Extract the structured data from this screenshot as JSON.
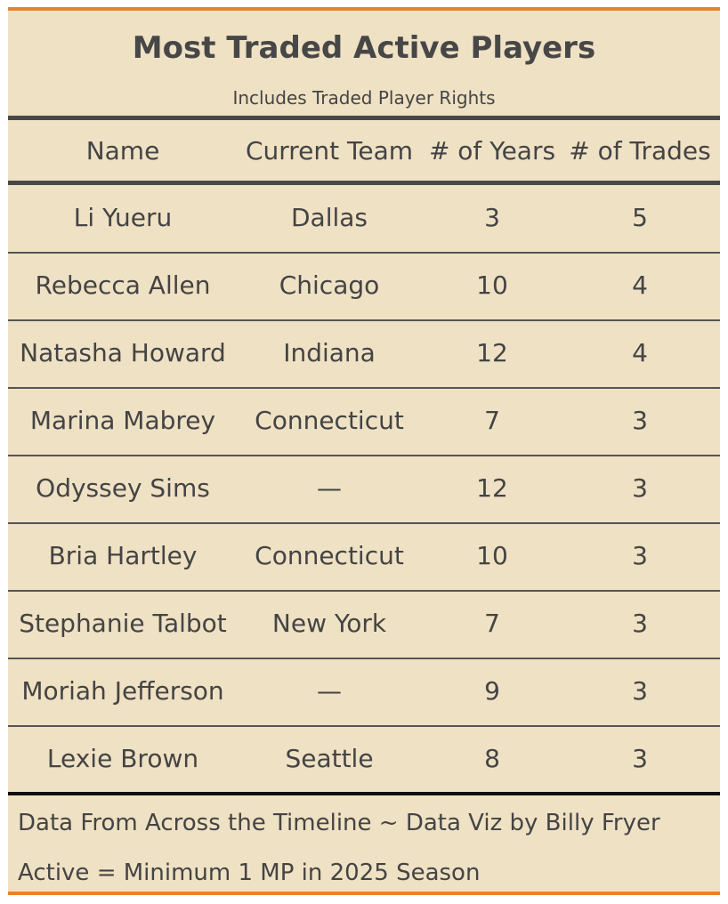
{
  "table": {
    "title": "Most Traded Active Players",
    "subtitle": "Includes Traded Player Rights",
    "columns": [
      "Name",
      "Current Team",
      "# of Years",
      "# of Trades"
    ],
    "rows": [
      {
        "name": "Li Yueru",
        "team": "Dallas",
        "years": "3",
        "trades": "5"
      },
      {
        "name": "Rebecca Allen",
        "team": "Chicago",
        "years": "10",
        "trades": "4"
      },
      {
        "name": "Natasha Howard",
        "team": "Indiana",
        "years": "12",
        "trades": "4"
      },
      {
        "name": "Marina Mabrey",
        "team": "Connecticut",
        "years": "7",
        "trades": "3"
      },
      {
        "name": "Odyssey Sims",
        "team": "—",
        "years": "12",
        "trades": "3"
      },
      {
        "name": "Bria Hartley",
        "team": "Connecticut",
        "years": "10",
        "trades": "3"
      },
      {
        "name": "Stephanie Talbot",
        "team": "New York",
        "years": "7",
        "trades": "3"
      },
      {
        "name": "Moriah Jefferson",
        "team": "—",
        "years": "9",
        "trades": "3"
      },
      {
        "name": "Lexie Brown",
        "team": "Seattle",
        "years": "8",
        "trades": "3"
      }
    ],
    "footer": [
      "Data From Across the Timeline ~ Data Viz by Billy Fryer",
      "Active = Minimum 1 MP in 2025 Season"
    ]
  },
  "colors": {
    "background": "#efe1c4",
    "accent_border": "#e8822d",
    "text": "#444444"
  }
}
